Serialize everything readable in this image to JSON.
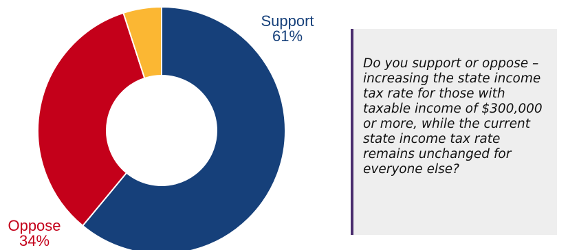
{
  "chart_data": {
    "type": "pie",
    "donut": true,
    "title": "",
    "slices": [
      {
        "name": "Support",
        "value": 61,
        "label": "61%",
        "color": "#16407a"
      },
      {
        "name": "Oppose",
        "value": 34,
        "label": "34%",
        "color": "#c4001a"
      },
      {
        "name": "",
        "value": 5,
        "label": "",
        "color": "#fbb733"
      }
    ],
    "legend": "none"
  },
  "question": {
    "text": "Do you support or oppose – increasing the state income tax rate for those with taxable income of $300,000 or more, while the current state income tax rate remains unchanged for everyone else?"
  }
}
